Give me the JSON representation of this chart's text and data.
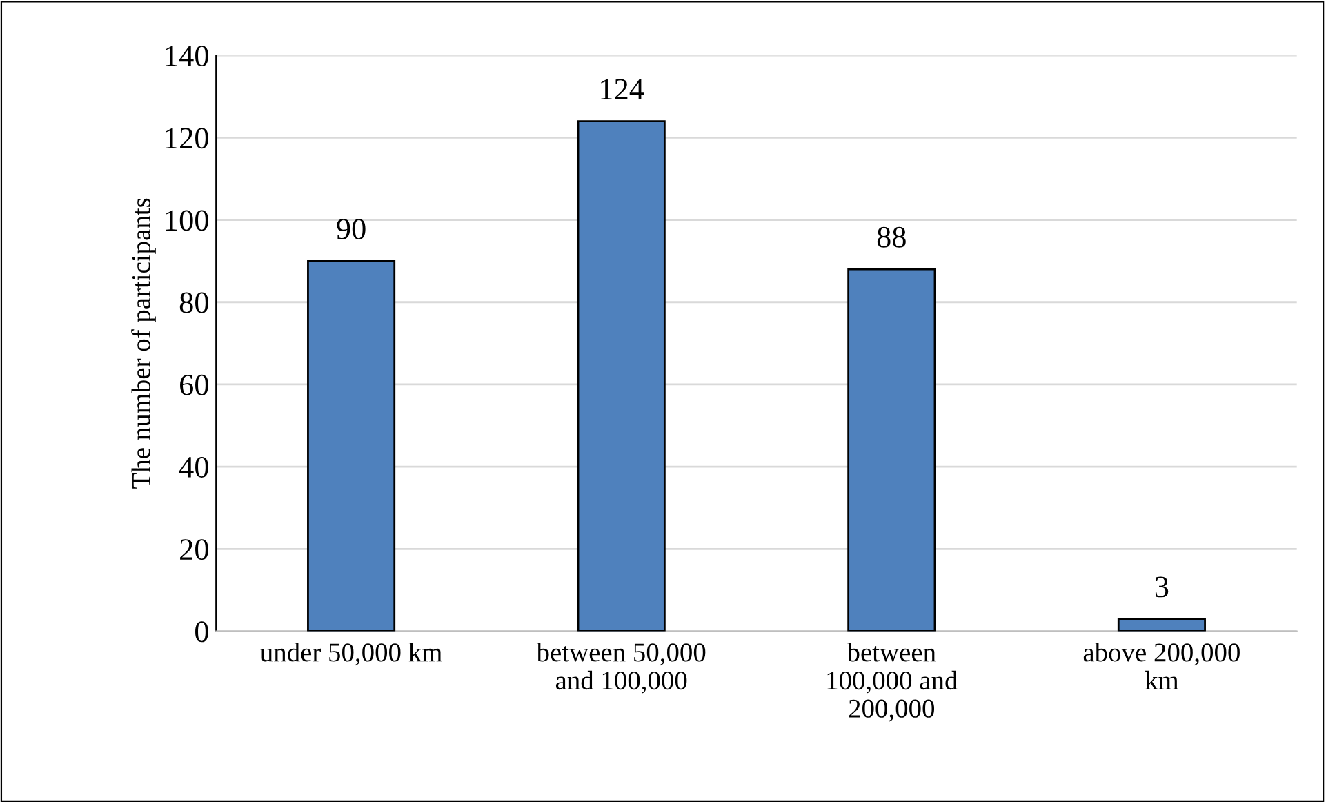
{
  "chart_data": {
    "type": "bar",
    "ylabel": "The number of participants",
    "categories": [
      "under 50,000 km",
      "between 50,000\nand 100,000",
      "between\n100,000 and\n200,000",
      "above 200,000\nkm"
    ],
    "values": [
      90,
      124,
      88,
      3
    ],
    "color": "#4f81bd",
    "ylim": [
      0,
      140
    ],
    "yticks": [
      0,
      20,
      40,
      60,
      80,
      100,
      120,
      140
    ],
    "grid": "y",
    "data_labels": true
  }
}
